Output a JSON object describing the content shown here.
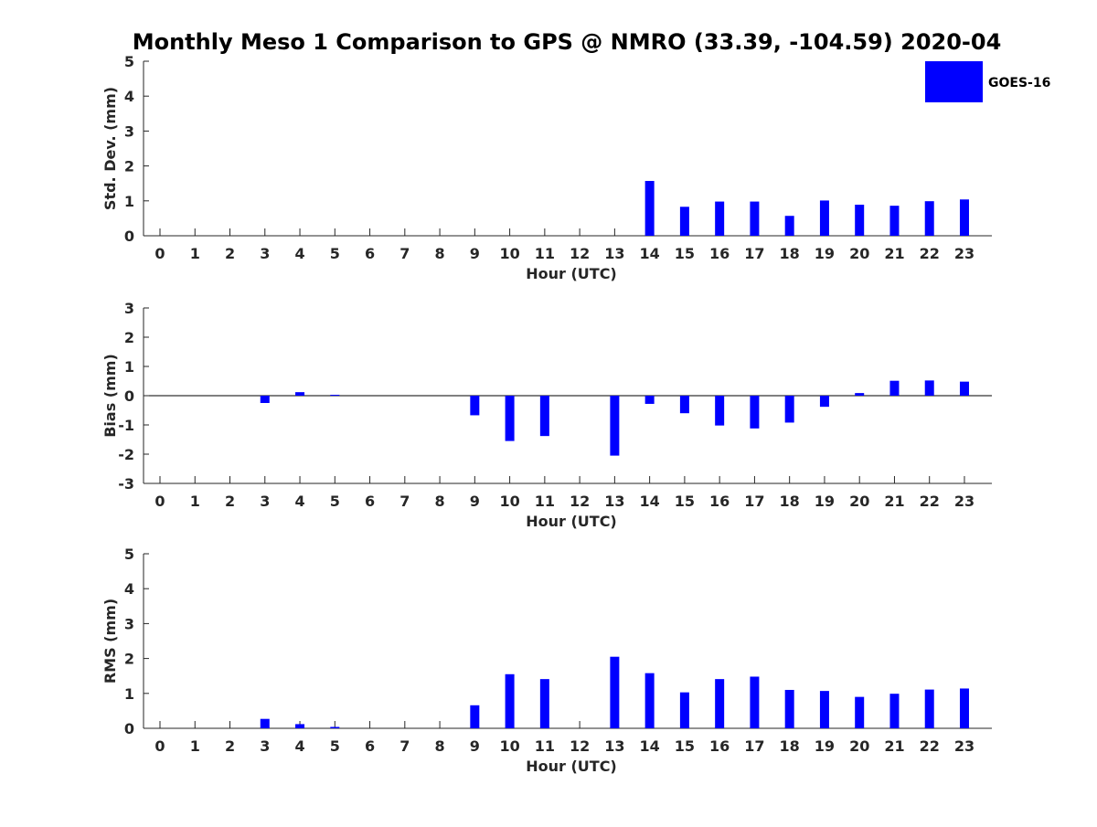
{
  "chart_data": {
    "type": "bar",
    "title": "Monthly Meso 1 Comparison to GPS @ NMRO (33.39, -104.59) 2020-04",
    "legend": {
      "label": "GOES-16",
      "color": "#0000ff",
      "position": "top-right"
    },
    "categories": [
      "0",
      "1",
      "2",
      "3",
      "4",
      "5",
      "6",
      "7",
      "8",
      "9",
      "10",
      "11",
      "12",
      "13",
      "14",
      "15",
      "16",
      "17",
      "18",
      "19",
      "20",
      "21",
      "22",
      "23"
    ],
    "panels": [
      {
        "id": "std",
        "ylabel": "Std. Dev. (mm)",
        "xlabel": "Hour (UTC)",
        "ylim": [
          0,
          5
        ],
        "yticks": [
          0,
          1,
          2,
          3,
          4,
          5
        ],
        "values": [
          null,
          null,
          null,
          0,
          0,
          0,
          null,
          null,
          null,
          0,
          0,
          0,
          null,
          0,
          1.57,
          0.83,
          0.98,
          0.98,
          0.57,
          1.01,
          0.89,
          0.86,
          0.99,
          1.04
        ]
      },
      {
        "id": "bias",
        "ylabel": "Bias (mm)",
        "xlabel": "Hour (UTC)",
        "ylim": [
          -3,
          3
        ],
        "yticks": [
          -3,
          -2,
          -1,
          0,
          1,
          2,
          3
        ],
        "values": [
          null,
          null,
          null,
          -0.25,
          0.12,
          0.03,
          null,
          null,
          null,
          -0.67,
          -1.55,
          -1.38,
          null,
          -2.05,
          -0.28,
          -0.6,
          -1.02,
          -1.12,
          -0.92,
          -0.38,
          0.09,
          0.51,
          0.52,
          0.48
        ]
      },
      {
        "id": "rms",
        "ylabel": "RMS (mm)",
        "xlabel": "Hour (UTC)",
        "ylim": [
          0,
          5
        ],
        "yticks": [
          0,
          1,
          2,
          3,
          4,
          5
        ],
        "values": [
          null,
          null,
          null,
          0.27,
          0.12,
          0.04,
          null,
          null,
          null,
          0.66,
          1.55,
          1.41,
          null,
          2.05,
          1.58,
          1.03,
          1.41,
          1.48,
          1.1,
          1.07,
          0.9,
          0.99,
          1.11,
          1.14
        ]
      }
    ]
  }
}
